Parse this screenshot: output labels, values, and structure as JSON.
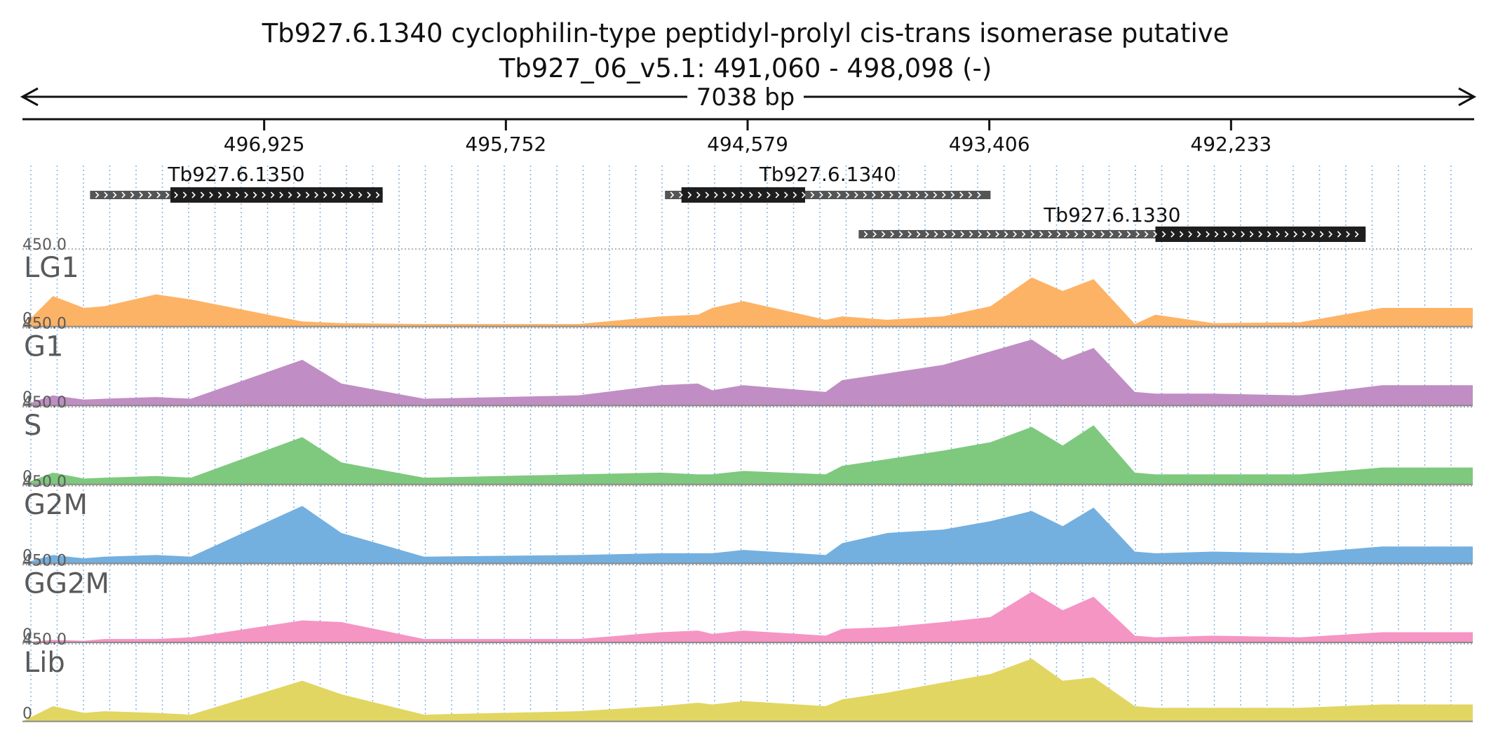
{
  "chart_data": {
    "type": "area",
    "title": "Tb927.6.1340  cyclophilin-type peptidyl-prolyl cis-trans isomerase  putative",
    "subtitle": "Tb927_06_v5.1: 491,060 - 498,098 (-)",
    "span_label": "7038 bp",
    "region": {
      "chrom": "Tb927_06_v5.1",
      "start": 491060,
      "end": 498098,
      "strand": "-"
    },
    "x_axis": {
      "direction": "descending",
      "ticks": [
        496925,
        495752,
        494579,
        493406,
        492233
      ],
      "tick_labels": [
        "496,925",
        "495,752",
        "494,579",
        "493,406",
        "492,233"
      ]
    },
    "genes": [
      {
        "name": "Tb927.6.1350",
        "start": 496350,
        "end": 497770,
        "cds_start": 496350,
        "cds_end": 497380,
        "row": 0
      },
      {
        "name": "Tb927.6.1340",
        "start": 493400,
        "end": 494980,
        "cds_start": 494300,
        "cds_end": 494900,
        "row": 0
      },
      {
        "name": "Tb927.6.1330",
        "start": 491580,
        "end": 494040,
        "cds_start": 491580,
        "cds_end": 492600,
        "row": 1
      }
    ],
    "tracks": [
      {
        "name": "LG1",
        "color": "#fdb366",
        "ymax": 450.0,
        "ymin": 0,
        "scale_top_label": "450.0",
        "scale_bottom_label": "0"
      },
      {
        "name": "G1",
        "color": "#c08ec4",
        "ymax": 450.0,
        "ymin": 0,
        "scale_top_label": "450.0",
        "scale_bottom_label": "0"
      },
      {
        "name": "S",
        "color": "#7ec97e",
        "ymax": 450.0,
        "ymin": 0,
        "scale_top_label": "450.0",
        "scale_bottom_label": "0"
      },
      {
        "name": "G2M",
        "color": "#73b0e0",
        "ymax": 450.0,
        "ymin": 0,
        "scale_top_label": "450.0",
        "scale_bottom_label": "0"
      },
      {
        "name": "GG2M",
        "color": "#f595c4",
        "ymax": 450.0,
        "ymin": 0,
        "scale_top_label": "450.0",
        "scale_bottom_label": "0"
      },
      {
        "name": "Lib",
        "color": "#e2d662",
        "ymax": 450.0,
        "ymin": 0,
        "scale_top_label": "450.0",
        "scale_bottom_label": "0"
      }
    ],
    "coverage_segments": {
      "x": [
        497950,
        497800,
        497700,
        497450,
        497280,
        496740,
        496550,
        496150,
        495400,
        495000,
        494820,
        494750,
        494600,
        494200,
        494120,
        493900,
        493630,
        493400,
        493200,
        493050,
        492900,
        492700,
        492600,
        492320,
        491900,
        491500
      ],
      "LG1": [
        180,
        110,
        120,
        190,
        160,
        30,
        20,
        15,
        15,
        60,
        70,
        110,
        150,
        40,
        60,
        40,
        60,
        120,
        290,
        210,
        280,
        15,
        70,
        20,
        25,
        110
      ],
      "G1": [
        60,
        35,
        40,
        50,
        40,
        270,
        130,
        40,
        60,
        120,
        130,
        90,
        120,
        80,
        150,
        190,
        240,
        320,
        390,
        270,
        340,
        80,
        70,
        70,
        60,
        120
      ],
      "S": [
        70,
        35,
        40,
        50,
        40,
        280,
        130,
        40,
        60,
        70,
        60,
        60,
        80,
        60,
        110,
        150,
        200,
        250,
        340,
        230,
        350,
        70,
        60,
        60,
        60,
        100
      ],
      "G2M": [
        50,
        30,
        40,
        50,
        40,
        340,
        180,
        40,
        50,
        60,
        60,
        60,
        80,
        50,
        120,
        180,
        200,
        250,
        310,
        220,
        330,
        70,
        60,
        70,
        60,
        100
      ],
      "GG2M": [
        15,
        10,
        20,
        20,
        30,
        130,
        120,
        20,
        20,
        60,
        70,
        50,
        70,
        40,
        80,
        90,
        120,
        150,
        300,
        190,
        270,
        40,
        30,
        40,
        30,
        60
      ],
      "Lib": [
        90,
        50,
        60,
        50,
        40,
        240,
        160,
        40,
        60,
        90,
        110,
        100,
        120,
        90,
        130,
        170,
        230,
        280,
        370,
        240,
        260,
        90,
        80,
        80,
        80,
        100
      ]
    }
  }
}
